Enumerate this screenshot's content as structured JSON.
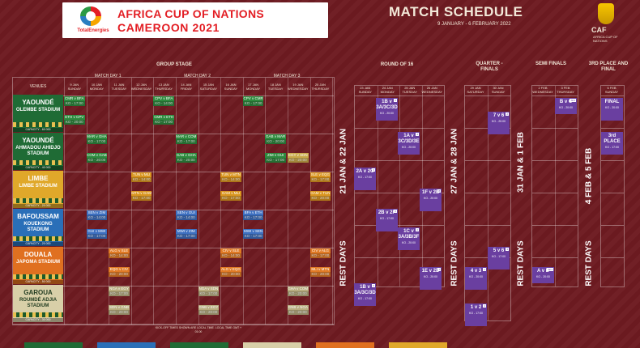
{
  "header": {
    "brand": "TotalEnergies",
    "title_line1": "AFRICA CUP OF NATIONS",
    "title_line2": "CAMEROON 2021"
  },
  "schedule": {
    "title": "MATCH SCHEDULE",
    "dates": "9 JANUARY - 6 FEBRUARY 2022"
  },
  "caf": {
    "name": "CAF",
    "sub": "AFRICA CUP OF NATIONS"
  },
  "sections": {
    "group": "GROUP STAGE",
    "r16": "ROUND OF 16",
    "qf": "QUARTER - FINALS",
    "sf": "SEMI FINALS",
    "third": "3RD PLACE AND FINAL"
  },
  "matchdays": [
    "MATCH DAY 1",
    "MATCH DAY 2",
    "MATCH DAY 3"
  ],
  "venues_label": "VENUES",
  "group_days": [
    {
      "d": "9 JAN",
      "w": "SUNDAY"
    },
    {
      "d": "10 JAN",
      "w": "MONDAY"
    },
    {
      "d": "11 JAN",
      "w": "TUESDAY"
    },
    {
      "d": "12 JAN",
      "w": "WEDNESDAY"
    },
    {
      "d": "13 JAN",
      "w": "THURSDAY"
    },
    {
      "d": "14 JAN",
      "w": "FRIDAY"
    },
    {
      "d": "15 JAN",
      "w": "SATURDAY"
    },
    {
      "d": "16 JAN",
      "w": "SUNDAY"
    },
    {
      "d": "17 JAN",
      "w": "MONDAY"
    },
    {
      "d": "18 JAN",
      "w": "TUESDAY"
    },
    {
      "d": "19 JAN",
      "w": "WEDNESDAY"
    },
    {
      "d": "20 JAN",
      "w": "THURSDAY"
    }
  ],
  "r16_days": [
    {
      "d": "23 JAN",
      "w": "SUNDAY"
    },
    {
      "d": "24 JAN",
      "w": "MONDAY"
    },
    {
      "d": "25 JAN",
      "w": "TUESDAY"
    },
    {
      "d": "26 JAN",
      "w": "WEDNESDAY"
    }
  ],
  "qf_days": [
    {
      "d": "29 JAN",
      "w": "SATURDAY"
    },
    {
      "d": "30 JAN",
      "w": "SUNDAY"
    }
  ],
  "sf_days": [
    {
      "d": "2 FEB",
      "w": "WEDNESDAY"
    },
    {
      "d": "3 FEB",
      "w": "THURSDAY"
    }
  ],
  "final_days": [
    {
      "d": "6 FEB",
      "w": "SUNDAY"
    }
  ],
  "venues": [
    {
      "city": "YAOUNDÉ",
      "stadium": "OLEMBE STADIUM",
      "capacity": "CAPACITY - 60 000",
      "color": "#1f6b35"
    },
    {
      "city": "YAOUNDÉ",
      "stadium": "AHMADOU AHIDJO STADIUM",
      "capacity": "CAPACITY - 40 000",
      "color": "#1f6b35"
    },
    {
      "city": "LIMBE",
      "stadium": "LIMBE STADIUM",
      "capacity": "CAPACITY - 20 000",
      "color": "#e0a82a"
    },
    {
      "city": "BAFOUSSAM",
      "stadium": "KOUEKONG STADIUM",
      "capacity": "CAPACITY - 20 000",
      "color": "#2a6fb8"
    },
    {
      "city": "DOUALA",
      "stadium": "JAPOMA STADIUM",
      "capacity": "CAPACITY - 50 000",
      "color": "#e07020"
    },
    {
      "city": "GAROUA",
      "stadium": "ROUMDÉ ADJIA STADIUM",
      "capacity": "CAPACITY - 30 000",
      "color": "#d8cfa8"
    }
  ],
  "group_matches": [
    {
      "col": 0,
      "row": 0,
      "t1": "CMR v BFA",
      "k1": "KO - 17:00",
      "t2": "ETH v CPV",
      "k2": "KO - 20:00",
      "color": "#2e8a3e"
    },
    {
      "col": 4,
      "row": 0,
      "t1": "CPV v BFA",
      "k1": "KO - 14:00",
      "t2": "CMR v ETH",
      "k2": "KO - 17:00",
      "color": "#2e8a3e"
    },
    {
      "col": 8,
      "row": 0,
      "t1": "CPV v CMR",
      "k1": "KO - 17:00",
      "t2": "",
      "k2": "",
      "color": "#2e8a3e"
    },
    {
      "col": 1,
      "row": 1,
      "t1": "MAR v GHA",
      "k1": "KO - 17:00",
      "t2": "COM v GAB",
      "k2": "KO - 20:00",
      "color": "#2e8a3e"
    },
    {
      "col": 5,
      "row": 1,
      "t1": "MAR v COM",
      "k1": "KO - 17:00",
      "t2": "GAB v GHA",
      "k2": "KO - 20:00",
      "color": "#2e8a3e"
    },
    {
      "col": 9,
      "row": 1,
      "t1": "GAB v MAR",
      "k1": "KO - 20:00",
      "t2": "ZIM v GUI",
      "k2": "KO - 17:00",
      "color": "#2e8a3e"
    },
    {
      "col": 10,
      "row": 1,
      "t1": "",
      "k1": "",
      "t2": "EGY v SDN",
      "k2": "KO - 20:00",
      "color": "#c9a94a"
    },
    {
      "col": 3,
      "row": 2,
      "t1": "TUN v MLI",
      "k1": "KO - 14:00",
      "t2": "MTN v GAM",
      "k2": "KO - 17:00",
      "color": "#d9951f"
    },
    {
      "col": 7,
      "row": 2,
      "t1": "TUN v MTN",
      "k1": "KO - 14:00",
      "t2": "GAM v MLI",
      "k2": "KO - 17:00",
      "color": "#d9951f"
    },
    {
      "col": 11,
      "row": 2,
      "t1": "SLE v EQG",
      "k1": "KO - 17:00",
      "t2": "GAM v TUN",
      "k2": "KO - 20:00",
      "color": "#d9951f"
    },
    {
      "col": 1,
      "row": 3,
      "t1": "SEN v ZIM",
      "k1": "KO - 14:00",
      "t2": "GUI v MWI",
      "k2": "KO - 17:00",
      "color": "#3d6fc0"
    },
    {
      "col": 5,
      "row": 3,
      "t1": "SEN v GUI",
      "k1": "KO - 14:00",
      "t2": "MWI v ZIM",
      "k2": "KO - 17:00",
      "color": "#3d6fc0"
    },
    {
      "col": 8,
      "row": 3,
      "t1": "BFA v ETH",
      "k1": "KO - 17:00",
      "t2": "MWI v SEN",
      "k2": "KO - 17:00",
      "color": "#3d6fc0"
    },
    {
      "col": 2,
      "row": 4,
      "t1": "ALG v SLE",
      "k1": "KO - 14:00",
      "t2": "EQG v CIV",
      "k2": "KO - 20:00",
      "color": "#e07a25"
    },
    {
      "col": 7,
      "row": 4,
      "t1": "CIV v SLE",
      "k1": "KO - 14:00",
      "t2": "ALG v EQG",
      "k2": "KO - 20:00",
      "color": "#e07a25"
    },
    {
      "col": 11,
      "row": 4,
      "t1": "CIV v ALG",
      "k1": "KO - 17:00",
      "t2": "MLI v MTN",
      "k2": "KO - 20:00",
      "color": "#e07a25"
    },
    {
      "col": 2,
      "row": 5,
      "t1": "NGA v EGY",
      "k1": "KO - 17:00",
      "t2": "SDN v GNB",
      "k2": "KO - 20:00",
      "color": "#b8ad80"
    },
    {
      "col": 6,
      "row": 5,
      "t1": "NGA v SDN",
      "k1": "KO - 17:00",
      "t2": "GNB v EGY",
      "k2": "KO - 20:00",
      "color": "#b8ad80"
    },
    {
      "col": 10,
      "row": 5,
      "t1": "GHA v COM",
      "k1": "KO - 20:00",
      "t2": "GNB v NGA",
      "k2": "KO - 20:00",
      "color": "#b8ad80"
    }
  ],
  "rest": {
    "r16_top": "21 JAN & 22 JAN",
    "r16_bottom": "REST DAYS",
    "qf_top": "27 JAN & 28 JAN",
    "qf_bottom": "REST DAYS",
    "sf_top": "31 JAN & 1 FEB",
    "sf_bottom": "REST DAYS",
    "f_top": "4 FEB & 5 FEB",
    "f_bottom": "REST DAYS"
  },
  "knockouts": [
    {
      "tag": "3",
      "t": "2A v 2C",
      "ko": "KO - 17:00"
    },
    {
      "tag": "1",
      "t": "1B v 3A/3C/3D",
      "ko": "KO - 20:00"
    },
    {
      "tag": "6",
      "t": "2B v 2F",
      "ko": "KO - 17:00"
    },
    {
      "tag": "4",
      "t": "1A v 3C/3D/3E",
      "ko": "KO - 20:00"
    },
    {
      "tag": "2",
      "t": "1C v 3A/3B/3F",
      "ko": "KO - 20:00"
    },
    {
      "tag": "5",
      "t": "1B v 3A/3C/3D",
      "ko": "KO - 17:00"
    },
    {
      "tag": "8",
      "t": "1F v 2E",
      "ko": "KO - 20:00"
    },
    {
      "tag": "7",
      "t": "1E v 2D",
      "ko": "KO - 20:00"
    },
    {
      "tag": "2",
      "t": "7 v 6",
      "ko": "KO - 20:00"
    },
    {
      "tag": "3",
      "t": "5 v 6",
      "ko": "KO - 17:00"
    },
    {
      "tag": "1",
      "t": "4 v 3",
      "ko": "KO - 20:00"
    },
    {
      "tag": "4",
      "t": "1 v 2",
      "ko": "KO - 17:00"
    },
    {
      "tag": "SF2",
      "t": "B v C",
      "ko": "KO - 20:00"
    },
    {
      "tag": "SF1",
      "t": "A v D",
      "ko": "KO - 20:00"
    },
    {
      "tag": "",
      "t": "FINAL",
      "ko": "KO - 20:00"
    },
    {
      "tag": "",
      "t": "3rd PLACE",
      "ko": "KO - 17:00"
    }
  ],
  "footnote": "KICK-OFF TIMES SHOWN ARE LOCAL TIME. LOCAL TIME GMT + 01:00",
  "legend_colors": [
    "#1f6b35",
    "#2a6fb8",
    "#1f6b35",
    "#d8cfa8",
    "#e07020",
    "#e0a82a"
  ]
}
